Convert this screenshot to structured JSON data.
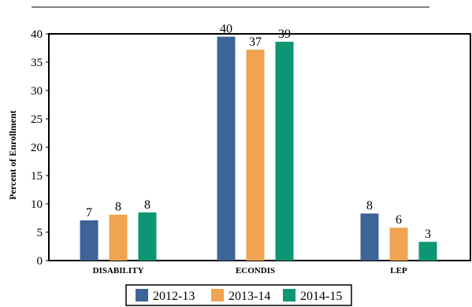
{
  "chart_data": {
    "type": "bar",
    "title": "",
    "xlabel": "",
    "ylabel": "Percent of Enrollment",
    "categories": [
      "DISABILITY",
      "ECONDIS",
      "LEP"
    ],
    "series": [
      {
        "name": "2012-13",
        "values": [
          7,
          40,
          8
        ],
        "color": "#3d6496"
      },
      {
        "name": "2013-14",
        "values": [
          8,
          37,
          6
        ],
        "color": "#f0a350"
      },
      {
        "name": "2014-15",
        "values": [
          8,
          39,
          3
        ],
        "color": "#0e9672"
      }
    ],
    "plotted_values": [
      [
        7.1,
        39.5,
        8.3
      ],
      [
        8.1,
        37.2,
        5.8
      ],
      [
        8.5,
        38.6,
        3.3
      ]
    ],
    "ylim": [
      0,
      40
    ],
    "yticks": [
      0,
      5,
      10,
      15,
      20,
      25,
      30,
      35,
      40
    ],
    "grid": false,
    "legend": "bottom"
  }
}
